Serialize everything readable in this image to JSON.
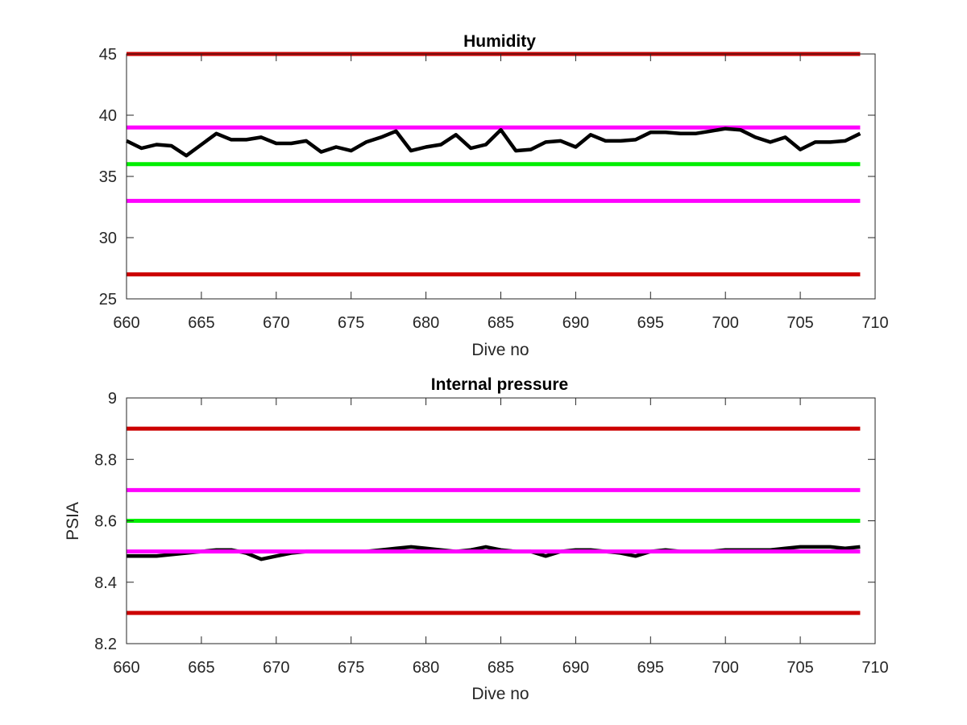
{
  "chart_data": [
    {
      "type": "line",
      "title": "Humidity",
      "xlabel": "Dive no",
      "ylabel": "",
      "xlim": [
        660,
        710
      ],
      "ylim": [
        25,
        45
      ],
      "xticks": [
        660,
        665,
        670,
        675,
        680,
        685,
        690,
        695,
        700,
        705,
        710
      ],
      "yticks": [
        25,
        30,
        35,
        40,
        45
      ],
      "grid": false,
      "reference_lines": [
        {
          "y": 45,
          "color": "#cc0000",
          "x_range": [
            660,
            709
          ]
        },
        {
          "y": 39,
          "color": "#ff00ff",
          "x_range": [
            660,
            709
          ]
        },
        {
          "y": 36,
          "color": "#00ee00",
          "x_range": [
            660,
            709
          ]
        },
        {
          "y": 33,
          "color": "#ff00ff",
          "x_range": [
            660,
            709
          ]
        },
        {
          "y": 27,
          "color": "#cc0000",
          "x_range": [
            660,
            709
          ]
        }
      ],
      "series": [
        {
          "color": "#000000",
          "x": [
            660,
            661,
            662,
            663,
            664,
            665,
            666,
            667,
            668,
            669,
            670,
            671,
            672,
            673,
            674,
            675,
            676,
            677,
            678,
            679,
            680,
            681,
            682,
            683,
            684,
            685,
            686,
            687,
            688,
            689,
            690,
            691,
            692,
            693,
            694,
            695,
            696,
            697,
            698,
            699,
            700,
            701,
            702,
            703,
            704,
            705,
            706,
            707,
            708,
            709
          ],
          "values": [
            37.9,
            37.3,
            37.6,
            37.5,
            36.7,
            37.6,
            38.5,
            38.0,
            38.0,
            38.2,
            37.7,
            37.7,
            37.9,
            37.0,
            37.4,
            37.1,
            37.8,
            38.2,
            38.7,
            37.1,
            37.4,
            37.6,
            38.4,
            37.3,
            37.6,
            38.8,
            37.1,
            37.2,
            37.8,
            37.9,
            37.4,
            38.4,
            37.9,
            37.9,
            38.0,
            38.6,
            38.6,
            38.5,
            38.5,
            38.7,
            38.9,
            38.8,
            38.2,
            37.8,
            38.2,
            37.2,
            37.8,
            37.8,
            37.9,
            38.5
          ]
        }
      ]
    },
    {
      "type": "line",
      "title": "Internal pressure",
      "xlabel": "Dive no",
      "ylabel": "PSIA",
      "xlim": [
        660,
        710
      ],
      "ylim": [
        8.2,
        9
      ],
      "xticks": [
        660,
        665,
        670,
        675,
        680,
        685,
        690,
        695,
        700,
        705,
        710
      ],
      "yticks": [
        "8.2",
        "8.4",
        "8.6",
        "8.8",
        "9"
      ],
      "grid": false,
      "reference_lines": [
        {
          "y": 8.9,
          "color": "#cc0000",
          "x_range": [
            660,
            709
          ]
        },
        {
          "y": 8.7,
          "color": "#ff00ff",
          "x_range": [
            660,
            709
          ]
        },
        {
          "y": 8.6,
          "color": "#00ee00",
          "x_range": [
            660,
            709
          ]
        },
        {
          "y": 8.3,
          "color": "#cc0000",
          "x_range": [
            660,
            709
          ]
        }
      ],
      "series": [
        {
          "color": "#000000",
          "x": [
            660,
            661,
            662,
            663,
            664,
            665,
            666,
            667,
            668,
            669,
            670,
            671,
            672,
            673,
            674,
            675,
            676,
            677,
            678,
            679,
            680,
            681,
            682,
            683,
            684,
            685,
            686,
            687,
            688,
            689,
            690,
            691,
            692,
            693,
            694,
            695,
            696,
            697,
            698,
            699,
            700,
            701,
            702,
            703,
            704,
            705,
            706,
            707,
            708,
            709
          ],
          "values": [
            8.485,
            8.485,
            8.485,
            8.49,
            8.495,
            8.5,
            8.505,
            8.505,
            8.495,
            8.475,
            8.485,
            8.495,
            8.5,
            8.5,
            8.5,
            8.5,
            8.5,
            8.505,
            8.51,
            8.515,
            8.51,
            8.505,
            8.5,
            8.505,
            8.515,
            8.505,
            8.5,
            8.5,
            8.485,
            8.5,
            8.505,
            8.505,
            8.5,
            8.495,
            8.485,
            8.5,
            8.505,
            8.5,
            8.5,
            8.5,
            8.505,
            8.505,
            8.505,
            8.505,
            8.51,
            8.515,
            8.515,
            8.515,
            8.51,
            8.515
          ]
        },
        {
          "color": "#ff00ff",
          "x": [
            660,
            709
          ],
          "values": [
            8.5,
            8.5
          ]
        }
      ]
    }
  ]
}
